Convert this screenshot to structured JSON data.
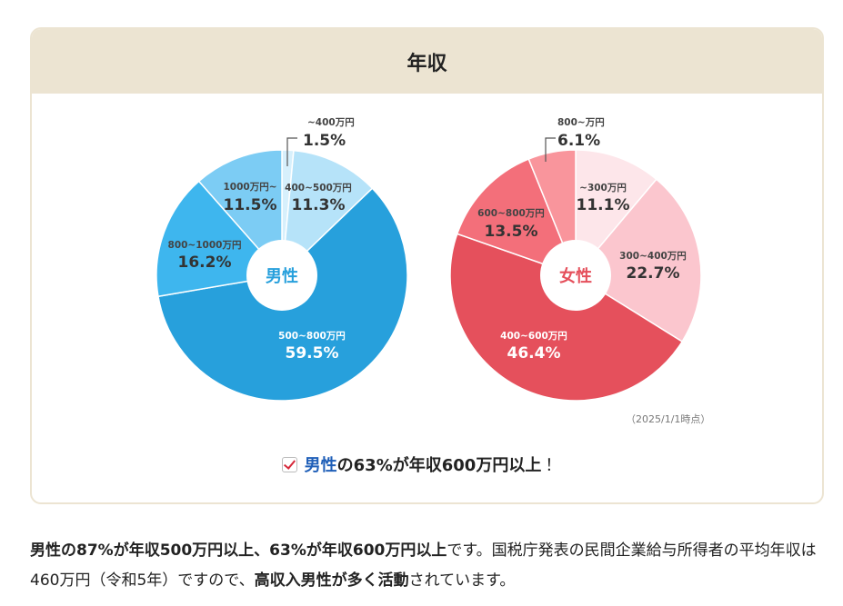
{
  "header": {
    "title": "年収"
  },
  "chart_data": [
    {
      "type": "pie",
      "center_label": "男性",
      "categories": [
        "~400万円",
        "400~500万円",
        "500~800万円",
        "800~1000万円",
        "1000万円~"
      ],
      "values": [
        1.5,
        11.3,
        59.5,
        16.2,
        11.5
      ],
      "colors": [
        "#d7f0fc",
        "#b6e3f9",
        "#27a0dc",
        "#3eb6ee",
        "#7cccf4"
      ],
      "value_labels": [
        "1.5%",
        "11.3%",
        "59.5%",
        "16.2%",
        "11.5%"
      ]
    },
    {
      "type": "pie",
      "center_label": "女性",
      "categories": [
        "~300万円",
        "300~400万円",
        "400~600万円",
        "600~800万円",
        "800~万円"
      ],
      "values": [
        11.1,
        22.7,
        46.4,
        13.5,
        6.1
      ],
      "colors": [
        "#fde6ea",
        "#fbc6ce",
        "#e5505c",
        "#f36f7a",
        "#f9959c"
      ],
      "value_labels": [
        "11.1%",
        "22.7%",
        "46.4%",
        "13.5%",
        "6.1%"
      ]
    }
  ],
  "as_of": "（2025/1/1時点）",
  "highlight": {
    "men": "男性",
    "rest": "の63%が年収600万円以上",
    "exclaim": "！"
  },
  "paragraph": {
    "p1": "男性の87%が年収500万円以上、63%が年収600万円以上",
    "p2": "です。国税庁発表の民間企業給与所得者の平均年収は460万円（令和5年）ですので、",
    "p3": "高収入男性が多く活動",
    "p4": "されています。"
  }
}
